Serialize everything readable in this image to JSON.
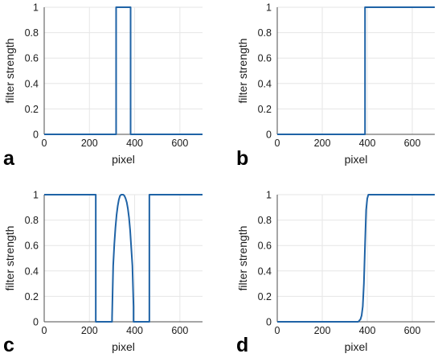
{
  "colors": {
    "line": "#1f63a6",
    "grid": "#e6e6e6",
    "axis": "#4d4d4d"
  },
  "chart_data": [
    {
      "type": "line",
      "panel_label": "a",
      "xlabel": "pixel",
      "ylabel": "filter strength",
      "xlim": [
        0,
        700
      ],
      "ylim": [
        0,
        1
      ],
      "xticks": [
        0,
        200,
        400,
        600
      ],
      "yticks": [
        0,
        0.2,
        0.4,
        0.6,
        0.8,
        1
      ],
      "grid": true,
      "series": [
        {
          "x": [
            0,
            318,
            318,
            382,
            382,
            700
          ],
          "y": [
            0,
            0,
            1,
            1,
            0,
            0
          ]
        }
      ]
    },
    {
      "type": "line",
      "panel_label": "b",
      "xlabel": "pixel",
      "ylabel": "filter strength",
      "xlim": [
        0,
        700
      ],
      "ylim": [
        0,
        1
      ],
      "xticks": [
        0,
        200,
        400,
        600
      ],
      "yticks": [
        0,
        0.2,
        0.4,
        0.6,
        0.8,
        1
      ],
      "grid": true,
      "series": [
        {
          "x": [
            0,
            390,
            390,
            700
          ],
          "y": [
            0,
            0,
            1,
            1
          ]
        }
      ]
    },
    {
      "type": "line",
      "panel_label": "c",
      "xlabel": "pixel",
      "ylabel": "filter strength",
      "xlim": [
        0,
        700
      ],
      "ylim": [
        0,
        1
      ],
      "xticks": [
        0,
        200,
        400,
        600
      ],
      "yticks": [
        0,
        0.2,
        0.4,
        0.6,
        0.8,
        1
      ],
      "grid": true,
      "series": [
        {
          "x": [
            0,
            228,
            228,
            300,
            300,
            305,
            310,
            315,
            320,
            325,
            330,
            335,
            340,
            345,
            350,
            355,
            360,
            365,
            370,
            375,
            380,
            385,
            390,
            395,
            395,
            400,
            400,
            465,
            465,
            700
          ],
          "y": [
            1,
            1,
            0,
            0,
            0.03,
            0.44,
            0.61,
            0.74,
            0.84,
            0.91,
            0.96,
            0.99,
            1.0,
            1.0,
            1.0,
            0.99,
            0.97,
            0.94,
            0.89,
            0.82,
            0.72,
            0.58,
            0.44,
            0.12,
            0,
            0,
            0,
            0,
            1,
            1
          ]
        }
      ]
    },
    {
      "type": "line",
      "panel_label": "d",
      "xlabel": "pixel",
      "ylabel": "filter strength",
      "xlim": [
        0,
        700
      ],
      "ylim": [
        0,
        1
      ],
      "xticks": [
        0,
        200,
        400,
        600
      ],
      "yticks": [
        0,
        0.2,
        0.4,
        0.6,
        0.8,
        1
      ],
      "grid": true,
      "series": [
        {
          "x": [
            0,
            360,
            365,
            370,
            375,
            380,
            385,
            390,
            395,
            400,
            405,
            410,
            700
          ],
          "y": [
            0,
            0,
            0.01,
            0.02,
            0.05,
            0.12,
            0.3,
            0.6,
            0.88,
            0.97,
            1.0,
            1.0,
            1.0
          ]
        }
      ]
    }
  ]
}
